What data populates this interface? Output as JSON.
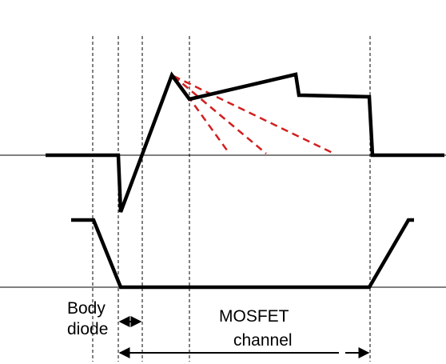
{
  "labels": {
    "body_diode_line1": "Body",
    "body_diode_line2": "diode",
    "mosfet_channel_line1": "MOSFET",
    "mosfet_channel_line2": "channel"
  },
  "colors": {
    "waveform": "#000000",
    "baseline": "#000000",
    "guide": "#000000",
    "dashed_fan": "#d21f1f"
  }
}
